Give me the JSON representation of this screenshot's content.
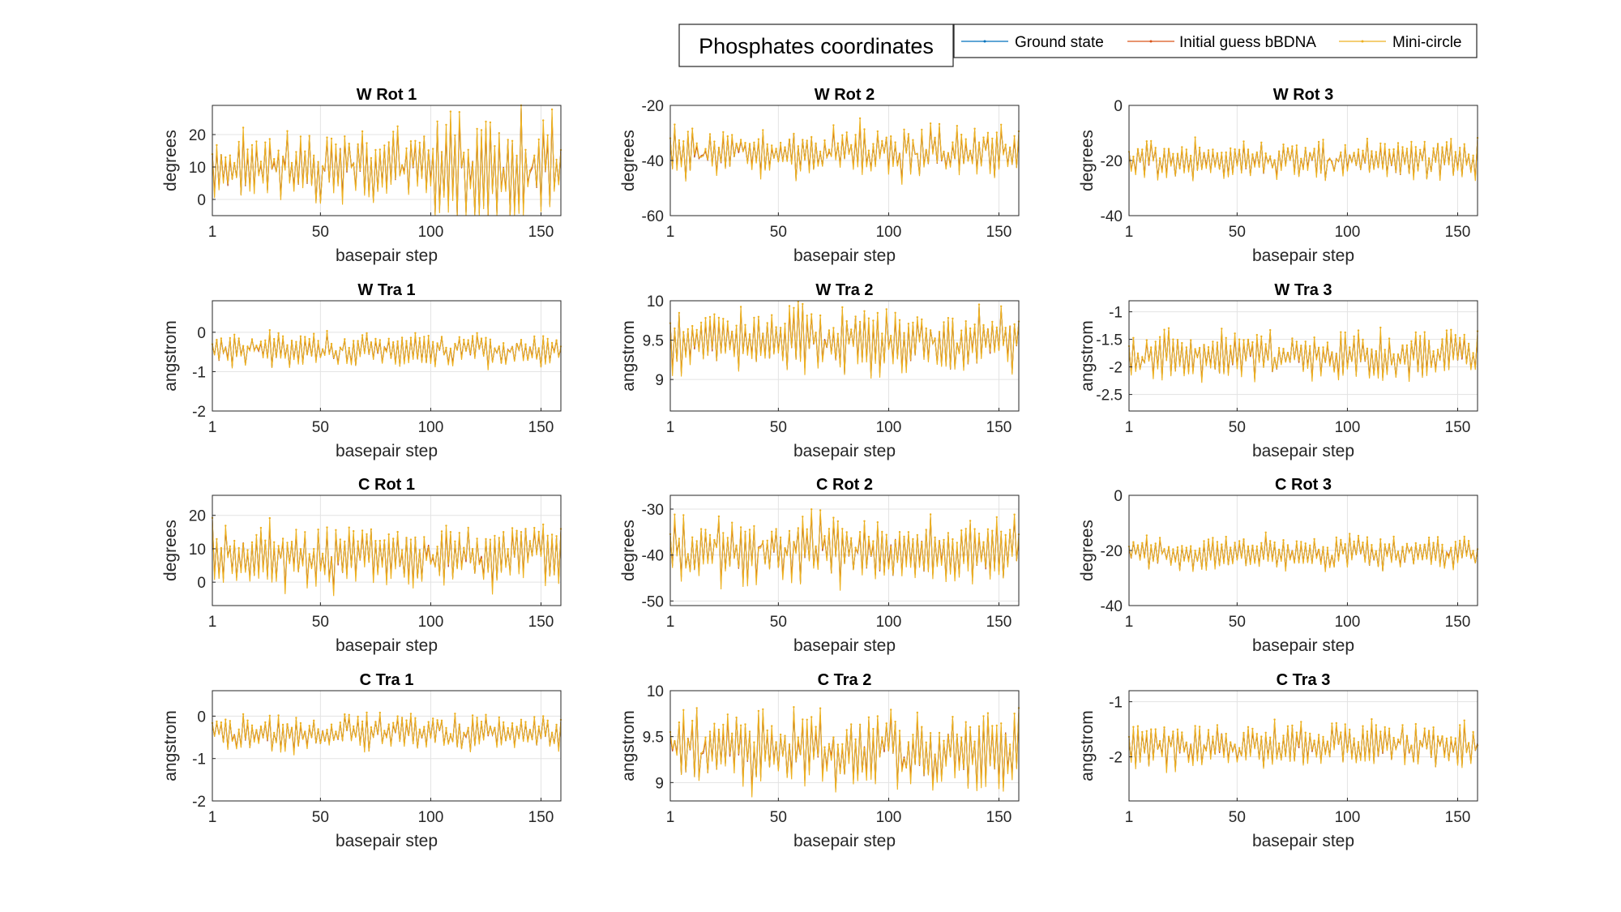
{
  "chart_data": {
    "type": "line",
    "figure_title": "Phosphates coordinates",
    "legend": {
      "placement": "top-right",
      "entries": [
        "Ground state",
        "Initial guess bBDNA",
        "Mini-circle"
      ]
    },
    "series_colors": [
      "#0072BD",
      "#D95319",
      "#EDB120"
    ],
    "grid": true,
    "x": {
      "n_points": 159,
      "ticks": [
        1,
        50,
        100,
        150
      ],
      "label": "basepair step",
      "xlim": [
        1,
        159
      ]
    },
    "panels": [
      {
        "title": "W Rot 1",
        "ylabel": "degrees",
        "ylim": [
          -5,
          29
        ],
        "yticks": [
          0,
          10,
          20
        ],
        "mean": 10,
        "amp": 9,
        "note": "bimodal 2-22 for first 100, larger swings -4..29 after"
      },
      {
        "title": "W Rot 2",
        "ylabel": "degrees",
        "ylim": [
          -60,
          -20
        ],
        "yticks": [
          -60,
          -40,
          -20
        ],
        "mean": -37,
        "amp": 8
      },
      {
        "title": "W Rot 3",
        "ylabel": "degrees",
        "ylim": [
          -40,
          0
        ],
        "yticks": [
          -40,
          -20,
          0
        ],
        "mean": -20,
        "amp": 6
      },
      {
        "title": "W Tra 1",
        "ylabel": "angstrom",
        "ylim": [
          -2,
          0.8
        ],
        "yticks": [
          -2,
          -1,
          0
        ],
        "mean": -0.45,
        "amp": 0.35
      },
      {
        "title": "W Tra 2",
        "ylabel": "angstrom",
        "ylim": [
          8.6,
          10
        ],
        "yticks": [
          9,
          9.5,
          10
        ],
        "mean": 9.5,
        "amp": 0.35
      },
      {
        "title": "W Tra 3",
        "ylabel": "angstrom",
        "ylim": [
          -2.8,
          -0.8
        ],
        "yticks": [
          -2.5,
          -2,
          -1.5,
          -1
        ],
        "mean": -1.8,
        "amp": 0.35
      },
      {
        "title": "C Rot 1",
        "ylabel": "degrees",
        "ylim": [
          -7,
          26
        ],
        "yticks": [
          0,
          10,
          20
        ],
        "mean": 8,
        "amp": 8
      },
      {
        "title": "C Rot 2",
        "ylabel": "degrees",
        "ylim": [
          -51,
          -27
        ],
        "yticks": [
          -50,
          -40,
          -30
        ],
        "mean": -39,
        "amp": 6
      },
      {
        "title": "C Rot 3",
        "ylabel": "degrees",
        "ylim": [
          -40,
          0
        ],
        "yticks": [
          -40,
          -20,
          0
        ],
        "mean": -21,
        "amp": 5
      },
      {
        "title": "C Tra 1",
        "ylabel": "angstrom",
        "ylim": [
          -2,
          0.6
        ],
        "yticks": [
          -2,
          -1,
          0
        ],
        "mean": -0.4,
        "amp": 0.35
      },
      {
        "title": "C Tra 2",
        "ylabel": "angstrom",
        "ylim": [
          8.8,
          10
        ],
        "yticks": [
          9,
          9.5,
          10
        ],
        "mean": 9.35,
        "amp": 0.35
      },
      {
        "title": "C Tra 3",
        "ylabel": "angstrom",
        "ylim": [
          -2.8,
          -0.8
        ],
        "yticks": [
          -2,
          -1
        ],
        "mean": -1.8,
        "amp": 0.35
      }
    ]
  }
}
